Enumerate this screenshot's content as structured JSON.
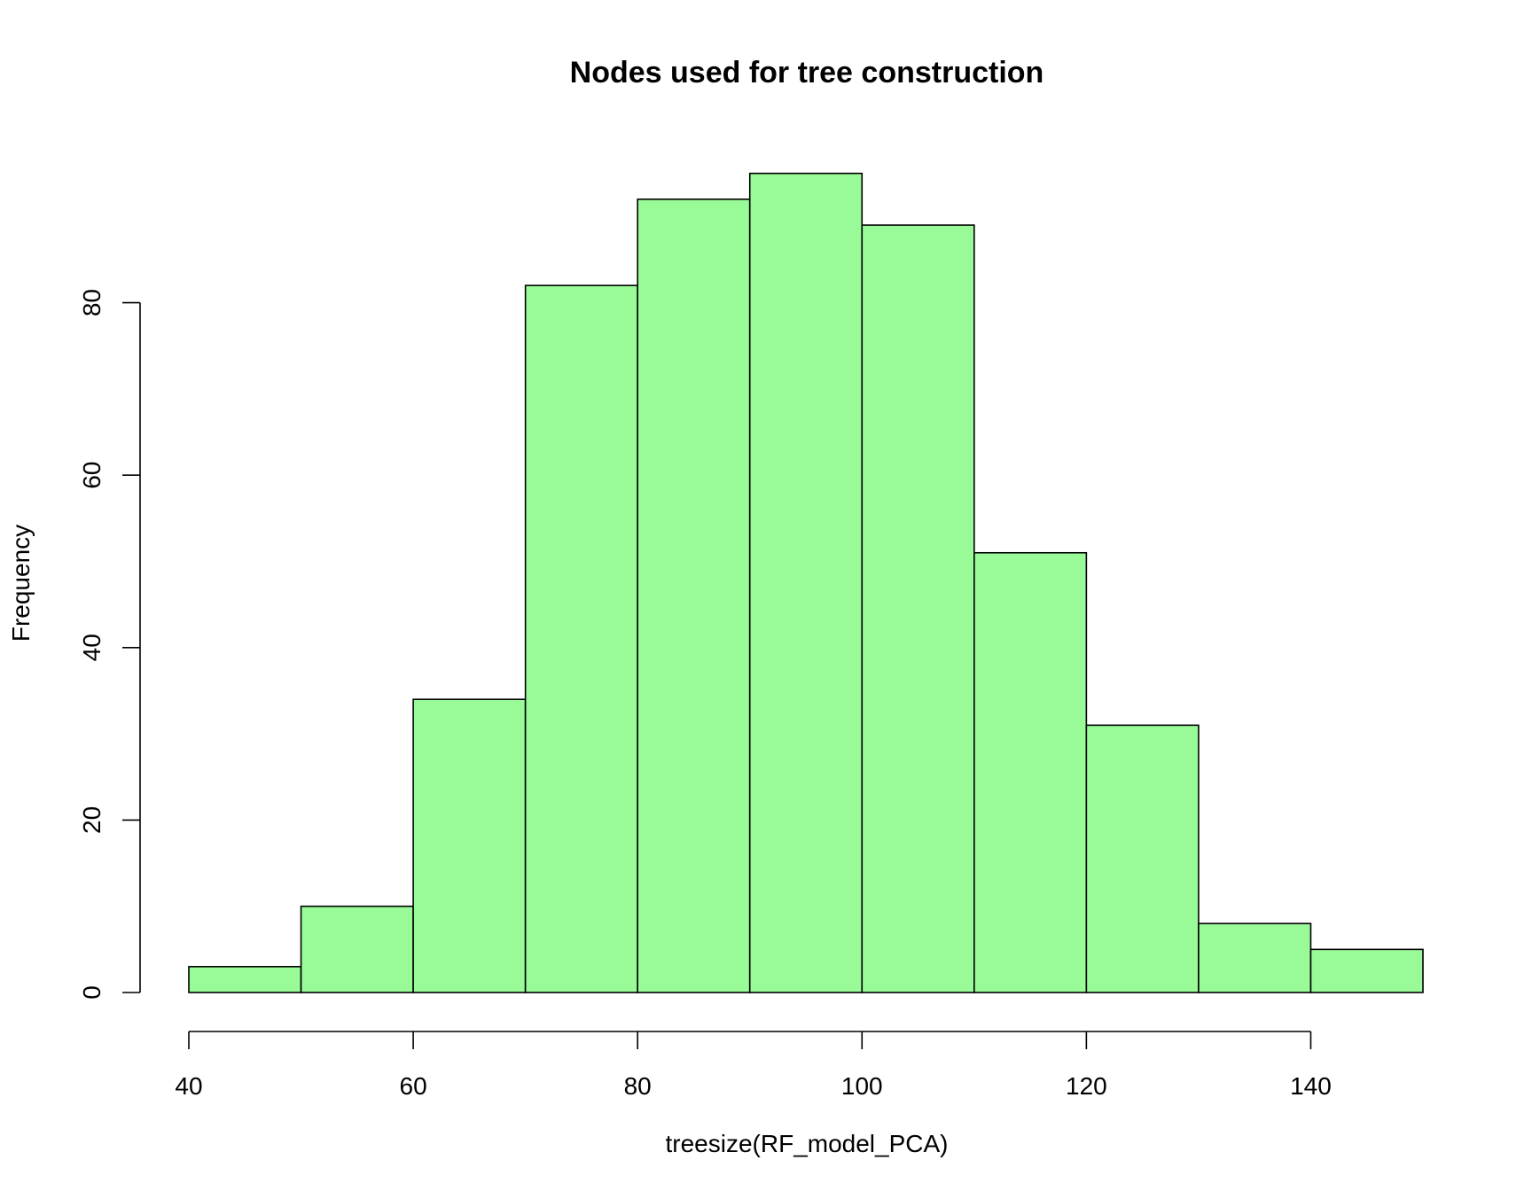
{
  "chart_data": {
    "type": "bar",
    "title": "Nodes used for tree construction",
    "xlabel": "treesize(RF_model_PCA)",
    "ylabel": "Frequency",
    "bin_edges": [
      40,
      50,
      60,
      70,
      80,
      90,
      100,
      110,
      120,
      130,
      140,
      150
    ],
    "values": [
      3,
      10,
      34,
      82,
      92,
      95,
      89,
      51,
      31,
      8,
      5
    ],
    "xlim": [
      40,
      150
    ],
    "ylim": [
      0,
      95
    ],
    "x_ticks": [
      40,
      60,
      80,
      100,
      120,
      140
    ],
    "y_ticks": [
      0,
      20,
      40,
      60,
      80
    ],
    "bar_color": "#98fb98",
    "edge_color": "#000000",
    "grid": false
  }
}
